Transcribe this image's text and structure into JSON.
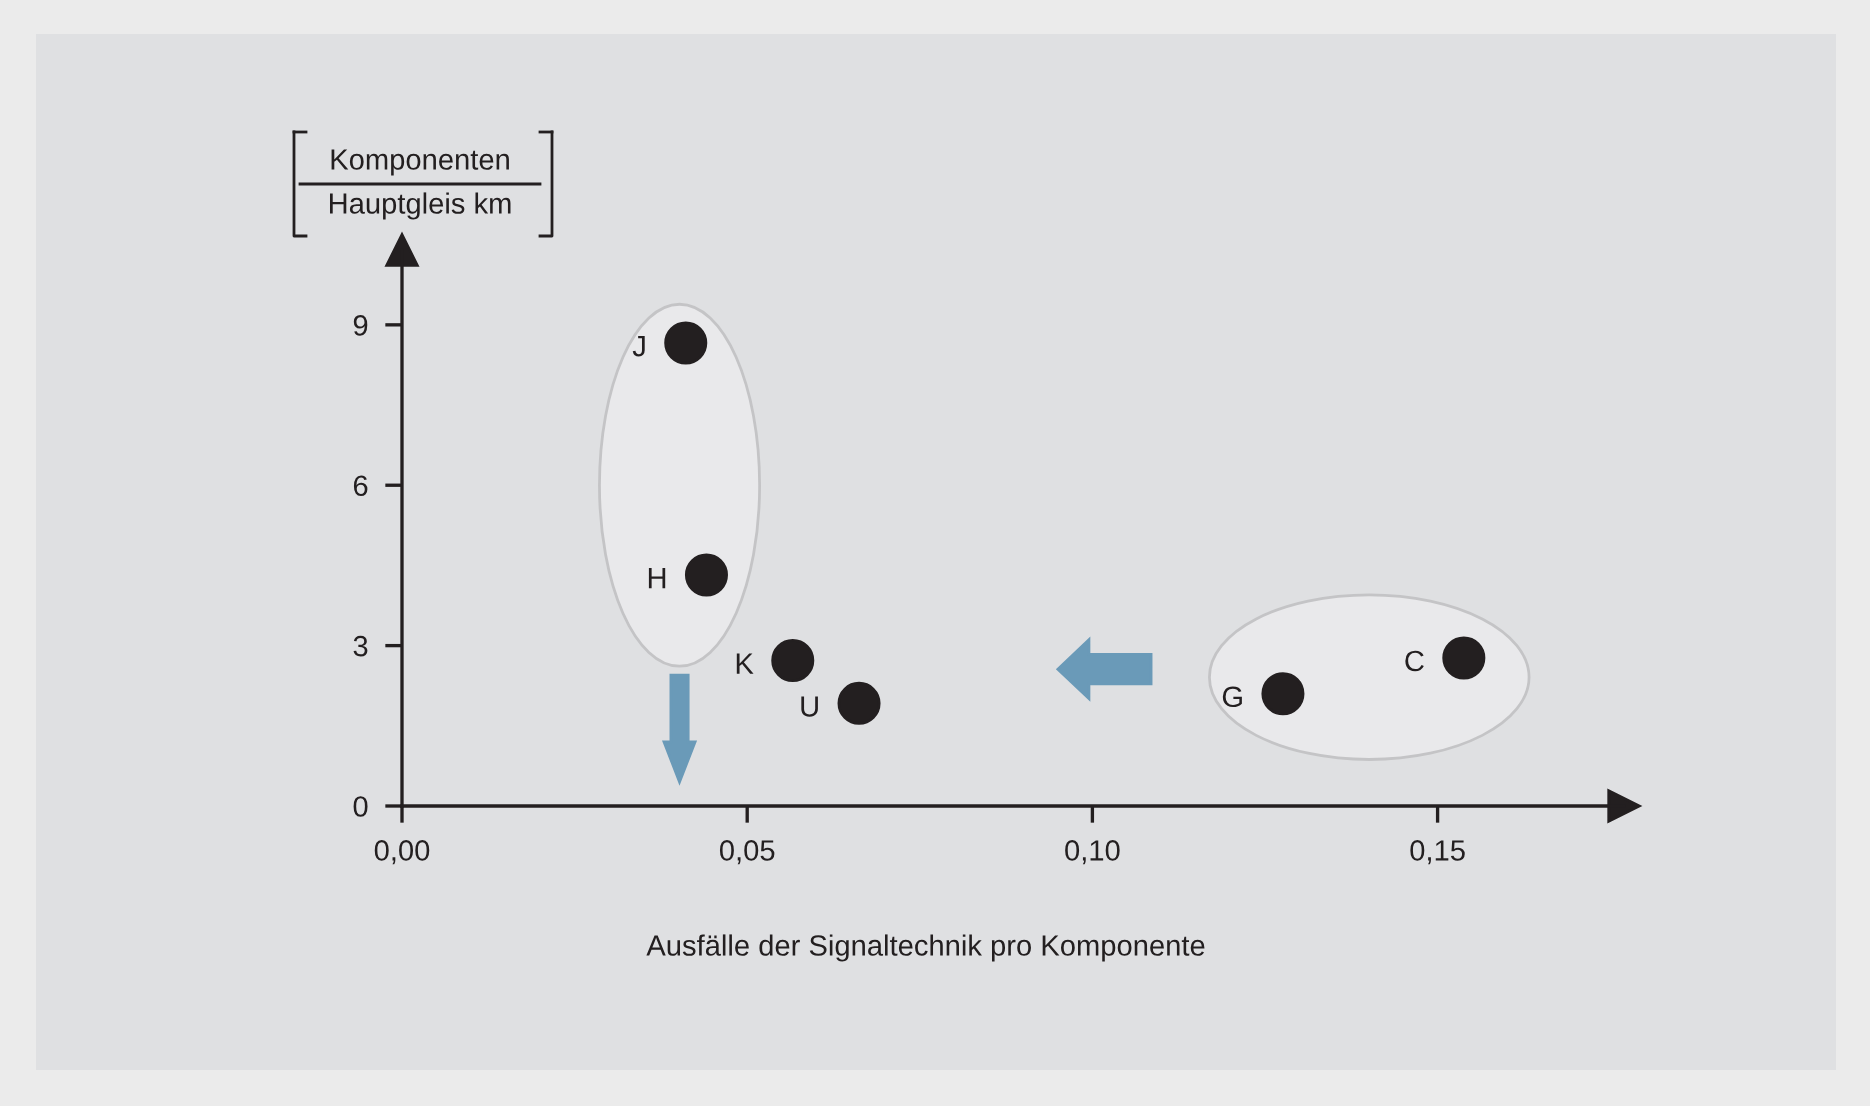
{
  "chart_data": {
    "type": "scatter",
    "xlabel": "Ausfälle der Signaltechnik pro Komponente",
    "ylabel": "Komponenten\nHauptgleis km",
    "x": [
      0.0411,
      0.0441,
      0.0566,
      0.0662,
      0.1276,
      0.1538
    ],
    "series": [
      {
        "color": "#231f20",
        "values": [
          8.66,
          4.32,
          2.72,
          1.92,
          2.1,
          2.77
        ]
      }
    ],
    "marker": "circle",
    "xlim": [
      0,
      0.177
    ],
    "ylim": [
      0,
      10.4
    ],
    "xticks": [
      {
        "value": 0,
        "label": "0,00"
      },
      {
        "value": 0.05,
        "label": "0,05"
      },
      {
        "value": 0.1,
        "label": "0,10"
      },
      {
        "value": 0.15,
        "label": "0,15"
      }
    ],
    "yticks": [
      0,
      3,
      6,
      9
    ],
    "grid": false,
    "annotations": [
      {
        "text": "J",
        "x": 0.0411,
        "y": 8.66
      },
      {
        "text": "H",
        "x": 0.0441,
        "y": 4.32
      },
      {
        "text": "K",
        "x": 0.0566,
        "y": 2.72
      },
      {
        "text": "U",
        "x": 0.0662,
        "y": 1.92
      },
      {
        "text": "G",
        "x": 0.1276,
        "y": 2.1
      },
      {
        "text": "C",
        "x": 0.1538,
        "y": 2.77
      }
    ]
  }
}
